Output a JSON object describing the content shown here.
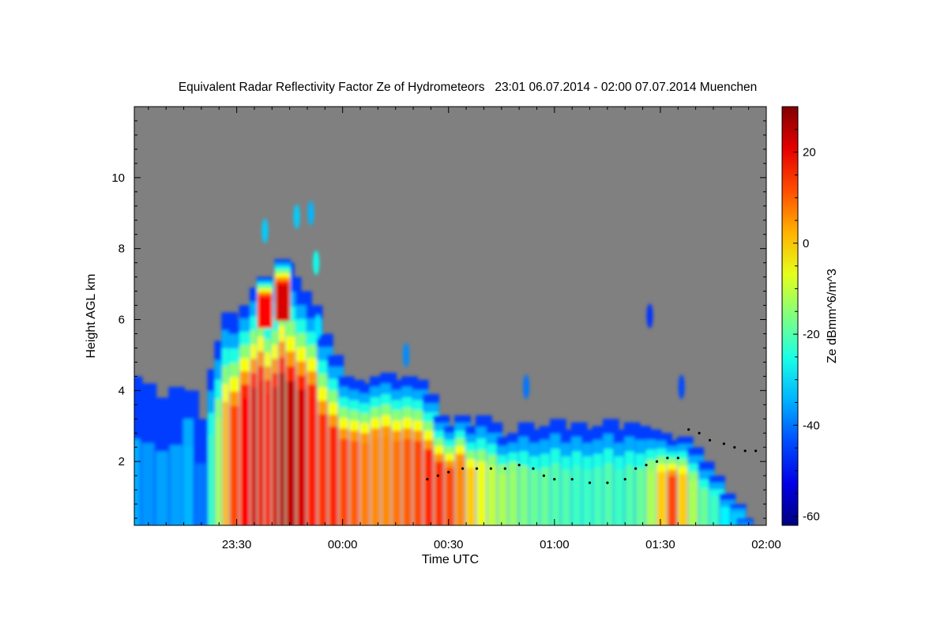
{
  "chart_data": {
    "type": "heatmap",
    "title": "Equivalent Radar Reflectivity Factor Ze of Hydrometeors   23:01 06.07.2014 - 02:00 07.07.2014 Muenchen",
    "xlabel": "Time UTC",
    "ylabel": "Height AGL km",
    "xlim_minutes": [
      -29,
      150
    ],
    "ylim": [
      0.2,
      12
    ],
    "x_tick_labels": [
      {
        "minutes": 0,
        "label": "23:30"
      },
      {
        "minutes": 30,
        "label": "00:00"
      },
      {
        "minutes": 60,
        "label": "00:30"
      },
      {
        "minutes": 90,
        "label": "01:00"
      },
      {
        "minutes": 120,
        "label": "01:30"
      },
      {
        "minutes": 150,
        "label": "02:00"
      }
    ],
    "y_ticks": [
      2,
      4,
      6,
      8,
      10
    ],
    "colorbar": {
      "label": "Ze dBmm^6/m^3",
      "range": [
        -62,
        30
      ],
      "ticks": [
        20,
        0,
        -20,
        -40,
        -60
      ],
      "colormap": "jet"
    },
    "background_color": "#808080",
    "columns": [
      {
        "t": -29,
        "top": 4.4,
        "core": -35
      },
      {
        "t": -25,
        "top": 4.2,
        "core": -37
      },
      {
        "t": -21,
        "top": 3.8,
        "core": -36
      },
      {
        "t": -17,
        "top": 4.1,
        "core": -36
      },
      {
        "t": -13,
        "top": 4.0,
        "core": -34
      },
      {
        "t": -10,
        "top": 3.2,
        "core": -40
      },
      {
        "t": -6,
        "top": 4.6,
        "core": -22
      },
      {
        "t": -4,
        "top": 5.4,
        "core": -12
      },
      {
        "t": -2,
        "top": 6.2,
        "core": 2
      },
      {
        "t": 0,
        "top": 6.0,
        "core": 12
      },
      {
        "t": 3,
        "top": 6.4,
        "core": 18
      },
      {
        "t": 6,
        "top": 6.9,
        "core": 22
      },
      {
        "t": 8,
        "top": 7.2,
        "core": 20
      },
      {
        "t": 10,
        "top": 6.6,
        "core": 18
      },
      {
        "t": 12,
        "top": 6.9,
        "core": 22
      },
      {
        "t": 14,
        "top": 7.6,
        "core": 25
      },
      {
        "t": 16,
        "top": 7.2,
        "core": 24
      },
      {
        "t": 19,
        "top": 6.8,
        "core": 22
      },
      {
        "t": 22,
        "top": 6.4,
        "core": 16
      },
      {
        "t": 25,
        "top": 5.6,
        "core": 14
      },
      {
        "t": 28,
        "top": 5.0,
        "core": 15
      },
      {
        "t": 31,
        "top": 4.4,
        "core": 12
      },
      {
        "t": 34,
        "top": 4.3,
        "core": 10
      },
      {
        "t": 37,
        "top": 4.2,
        "core": 7
      },
      {
        "t": 40,
        "top": 4.4,
        "core": 6
      },
      {
        "t": 43,
        "top": 4.5,
        "core": 6
      },
      {
        "t": 46,
        "top": 4.3,
        "core": 8
      },
      {
        "t": 49,
        "top": 4.4,
        "core": 10
      },
      {
        "t": 52,
        "top": 4.3,
        "core": 12
      },
      {
        "t": 55,
        "top": 3.9,
        "core": 15
      },
      {
        "t": 58,
        "top": 3.3,
        "core": 14
      },
      {
        "t": 61,
        "top": 3.0,
        "core": 12
      },
      {
        "t": 64,
        "top": 3.3,
        "core": 6
      },
      {
        "t": 67,
        "top": 3.0,
        "core": 0
      },
      {
        "t": 70,
        "top": 3.3,
        "core": -6
      },
      {
        "t": 73,
        "top": 3.1,
        "core": -10
      },
      {
        "t": 76,
        "top": 2.7,
        "core": -12
      },
      {
        "t": 79,
        "top": 2.8,
        "core": -14
      },
      {
        "t": 82,
        "top": 3.1,
        "core": -16
      },
      {
        "t": 85,
        "top": 2.9,
        "core": -18
      },
      {
        "t": 88,
        "top": 3.0,
        "core": -18
      },
      {
        "t": 91,
        "top": 3.2,
        "core": -20
      },
      {
        "t": 94,
        "top": 2.9,
        "core": -20
      },
      {
        "t": 97,
        "top": 3.1,
        "core": -22
      },
      {
        "t": 100,
        "top": 2.9,
        "core": -22
      },
      {
        "t": 103,
        "top": 3.0,
        "core": -21
      },
      {
        "t": 106,
        "top": 3.2,
        "core": -20
      },
      {
        "t": 109,
        "top": 2.9,
        "core": -22
      },
      {
        "t": 112,
        "top": 3.1,
        "core": -20
      },
      {
        "t": 115,
        "top": 3.0,
        "core": -18
      },
      {
        "t": 118,
        "top": 2.9,
        "core": -12
      },
      {
        "t": 121,
        "top": 2.8,
        "core": 0
      },
      {
        "t": 124,
        "top": 2.6,
        "core": 12
      },
      {
        "t": 127,
        "top": 2.7,
        "core": 0
      },
      {
        "t": 130,
        "top": 2.4,
        "core": -12
      },
      {
        "t": 133,
        "top": 2.0,
        "core": -18
      },
      {
        "t": 136,
        "top": 1.6,
        "core": -22
      },
      {
        "t": 139,
        "top": 1.1,
        "core": -28
      },
      {
        "t": 142,
        "top": 0.8,
        "core": -32
      },
      {
        "t": 144,
        "top": 0.4,
        "core": -38
      }
    ],
    "high_columns": [
      {
        "t": 8,
        "bottom": 5.8,
        "top": 7.2,
        "core": 18
      },
      {
        "t": 13,
        "bottom": 6.0,
        "top": 7.7,
        "core": 22
      }
    ],
    "isolated_cells": [
      {
        "t": 8,
        "y": 8.5,
        "core": -32
      },
      {
        "t": 17,
        "y": 8.9,
        "core": -32
      },
      {
        "t": 21,
        "y": 9.0,
        "core": -34
      },
      {
        "t": 22.5,
        "y": 7.6,
        "core": -26
      },
      {
        "t": 23,
        "y": 5.8,
        "core": -30
      },
      {
        "t": 48,
        "y": 5.0,
        "core": -38
      },
      {
        "t": 82,
        "y": 4.1,
        "core": -40
      },
      {
        "t": 117,
        "y": 6.1,
        "core": -46
      },
      {
        "t": 126,
        "y": 4.1,
        "core": -44
      }
    ],
    "cloud_base_points": [
      {
        "t": 54,
        "h": 1.5
      },
      {
        "t": 57,
        "h": 1.6
      },
      {
        "t": 60,
        "h": 1.7
      },
      {
        "t": 64,
        "h": 1.8
      },
      {
        "t": 68,
        "h": 1.8
      },
      {
        "t": 72,
        "h": 1.8
      },
      {
        "t": 76,
        "h": 1.8
      },
      {
        "t": 80,
        "h": 1.9
      },
      {
        "t": 84,
        "h": 1.8
      },
      {
        "t": 87,
        "h": 1.6
      },
      {
        "t": 90,
        "h": 1.5
      },
      {
        "t": 95,
        "h": 1.5
      },
      {
        "t": 100,
        "h": 1.4
      },
      {
        "t": 105,
        "h": 1.4
      },
      {
        "t": 110,
        "h": 1.5
      },
      {
        "t": 113,
        "h": 1.8
      },
      {
        "t": 116,
        "h": 1.9
      },
      {
        "t": 119,
        "h": 2.0
      },
      {
        "t": 122,
        "h": 2.1
      },
      {
        "t": 125,
        "h": 2.1
      },
      {
        "t": 128,
        "h": 2.9
      },
      {
        "t": 131,
        "h": 2.8
      },
      {
        "t": 134,
        "h": 2.6
      },
      {
        "t": 138,
        "h": 2.5
      },
      {
        "t": 141,
        "h": 2.4
      },
      {
        "t": 144,
        "h": 2.3
      },
      {
        "t": 147,
        "h": 2.3
      }
    ]
  }
}
